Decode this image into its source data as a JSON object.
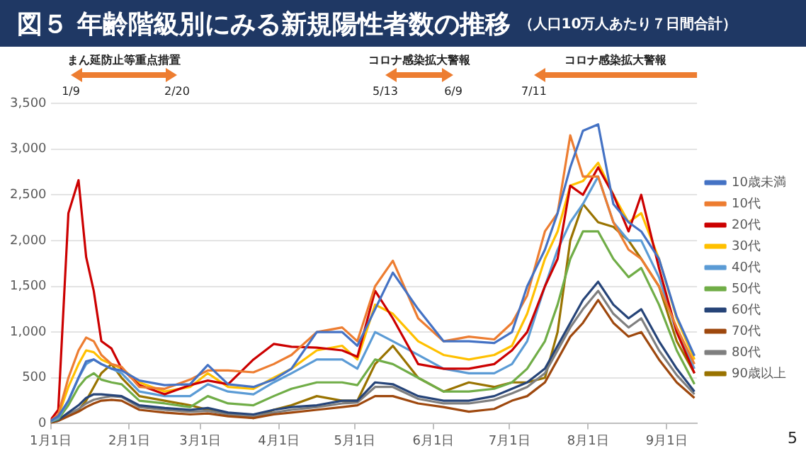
{
  "chart_data": {
    "type": "line",
    "title": "図５ 年齢階級別にみる新規陽性者数の推移",
    "subtitle": "（人口10万人あたり７日間合計）",
    "x": [
      "--01-01",
      "--01-04",
      "--01-08",
      "--01-12",
      "--01-15",
      "--01-18",
      "--01-21",
      "--01-25",
      "--01-29",
      "--02-05",
      "--02-15",
      "--02-25",
      "--03-04",
      "--03-12",
      "--03-22",
      "--03-30",
      "--04-06",
      "--04-16",
      "--04-26",
      "--05-02",
      "--05-09",
      "--05-16",
      "--05-26",
      "--06-05",
      "--06-15",
      "--06-25",
      "--07-02",
      "--07-08",
      "--07-15",
      "--07-20",
      "--07-25",
      "--07-30",
      "--08-05",
      "--08-11",
      "--08-17",
      "--08-22",
      "--08-29",
      "--09-05",
      "--09-12"
    ],
    "series": [
      {
        "name": "10歳未満",
        "color": "#4472c4",
        "values": [
          30,
          80,
          250,
          500,
          680,
          700,
          650,
          600,
          580,
          470,
          420,
          430,
          640,
          430,
          400,
          480,
          600,
          1000,
          1000,
          850,
          1250,
          1650,
          1250,
          900,
          900,
          880,
          1000,
          1500,
          1900,
          2300,
          2800,
          3200,
          3270,
          2400,
          2200,
          2100,
          1800,
          1170,
          740
        ]
      },
      {
        "name": "10代",
        "color": "#ed7d31",
        "values": [
          30,
          100,
          500,
          800,
          940,
          900,
          750,
          650,
          620,
          400,
          380,
          480,
          580,
          580,
          560,
          650,
          750,
          1000,
          1050,
          900,
          1500,
          1780,
          1150,
          900,
          950,
          920,
          1100,
          1400,
          2100,
          2300,
          3150,
          2700,
          2700,
          2200,
          1900,
          1800,
          1500,
          1050,
          650
        ]
      },
      {
        "name": "20代",
        "color": "#cc0000",
        "values": [
          40,
          150,
          2300,
          2660,
          1820,
          1450,
          900,
          820,
          600,
          420,
          320,
          420,
          470,
          430,
          700,
          870,
          840,
          830,
          800,
          730,
          1450,
          1150,
          650,
          600,
          600,
          650,
          800,
          1000,
          1500,
          1800,
          2600,
          2500,
          2800,
          2500,
          2100,
          2500,
          1700,
          1000,
          550
        ]
      },
      {
        "name": "30代",
        "color": "#ffc000",
        "values": [
          30,
          80,
          400,
          650,
          800,
          780,
          700,
          650,
          600,
          450,
          350,
          400,
          550,
          400,
          380,
          500,
          600,
          800,
          850,
          700,
          1300,
          1200,
          900,
          750,
          700,
          750,
          850,
          1200,
          1800,
          2100,
          2600,
          2650,
          2850,
          2500,
          2200,
          2300,
          1800,
          1150,
          700
        ]
      },
      {
        "name": "40代",
        "color": "#5b9bd5",
        "values": [
          20,
          60,
          250,
          500,
          650,
          700,
          650,
          600,
          550,
          350,
          300,
          300,
          430,
          350,
          320,
          450,
          550,
          700,
          700,
          600,
          1000,
          900,
          750,
          600,
          550,
          550,
          650,
          900,
          1500,
          1900,
          2200,
          2400,
          2700,
          2200,
          2000,
          2000,
          1600,
          1000,
          600
        ]
      },
      {
        "name": "50代",
        "color": "#70ad47",
        "values": [
          20,
          50,
          200,
          400,
          500,
          550,
          480,
          450,
          430,
          250,
          220,
          180,
          300,
          220,
          200,
          300,
          380,
          450,
          450,
          420,
          700,
          650,
          500,
          350,
          350,
          380,
          450,
          600,
          900,
          1300,
          1800,
          2100,
          2100,
          1800,
          1600,
          1700,
          1300,
          800,
          430
        ]
      },
      {
        "name": "60代",
        "color": "#264478",
        "values": [
          20,
          40,
          120,
          200,
          280,
          320,
          320,
          310,
          300,
          200,
          170,
          150,
          170,
          120,
          100,
          150,
          180,
          200,
          250,
          250,
          450,
          430,
          300,
          250,
          250,
          300,
          380,
          450,
          600,
          850,
          1100,
          1350,
          1550,
          1300,
          1150,
          1250,
          900,
          600,
          350
        ]
      },
      {
        "name": "70代",
        "color": "#9e480e",
        "values": [
          10,
          30,
          80,
          130,
          180,
          220,
          250,
          260,
          250,
          150,
          120,
          100,
          110,
          80,
          60,
          100,
          120,
          150,
          180,
          200,
          300,
          300,
          220,
          180,
          130,
          160,
          250,
          300,
          450,
          700,
          950,
          1100,
          1350,
          1100,
          950,
          1000,
          700,
          450,
          280
        ]
      },
      {
        "name": "80代",
        "color": "#7f7f7f",
        "values": [
          20,
          40,
          100,
          160,
          220,
          260,
          280,
          300,
          290,
          180,
          150,
          130,
          140,
          100,
          80,
          120,
          150,
          180,
          220,
          230,
          400,
          400,
          270,
          220,
          220,
          260,
          330,
          400,
          550,
          800,
          1050,
          1250,
          1450,
          1200,
          1050,
          1150,
          800,
          530,
          320
        ]
      },
      {
        "name": "90歳以上",
        "color": "#997300",
        "values": [
          10,
          30,
          100,
          150,
          250,
          400,
          550,
          650,
          500,
          300,
          250,
          200,
          150,
          100,
          60,
          150,
          200,
          300,
          250,
          250,
          650,
          850,
          500,
          350,
          450,
          400,
          450,
          450,
          500,
          1000,
          2000,
          2400,
          2200,
          2150,
          2000,
          1800,
          1500,
          900,
          550
        ]
      }
    ],
    "xlim": [
      "--01-01",
      "--09-13"
    ],
    "xticks": [
      {
        "value": "--01-01",
        "label": "1月1日"
      },
      {
        "value": "--02-01",
        "label": "2月1日"
      },
      {
        "value": "--03-01",
        "label": "3月1日"
      },
      {
        "value": "--04-01",
        "label": "4月1日"
      },
      {
        "value": "--05-01",
        "label": "5月1日"
      },
      {
        "value": "--06-01",
        "label": "6月1日"
      },
      {
        "value": "--07-01",
        "label": "7月1日"
      },
      {
        "value": "--08-01",
        "label": "8月1日"
      },
      {
        "value": "--09-01",
        "label": "9月1日"
      }
    ],
    "ylim": [
      0,
      3500
    ],
    "yticks": [
      0,
      500,
      {
        "value": 1000,
        "label": "1,000"
      },
      {
        "value": 1500,
        "label": "1,500"
      },
      {
        "value": 2000,
        "label": "2,000"
      },
      {
        "value": 2500,
        "label": "2,500"
      },
      {
        "value": 3000,
        "label": "3,000"
      },
      {
        "value": 3500,
        "label": "3,500"
      }
    ],
    "annotations": [
      "まん延防止等重点措置",
      "1/9",
      "2/20",
      "コロナ感染拡大警報",
      "5/13",
      "6/9",
      "コロナ感染拡大警報",
      "7/11",
      "5"
    ],
    "grid": "y",
    "legend": "right",
    "marker": "none",
    "line_style": "solid"
  }
}
